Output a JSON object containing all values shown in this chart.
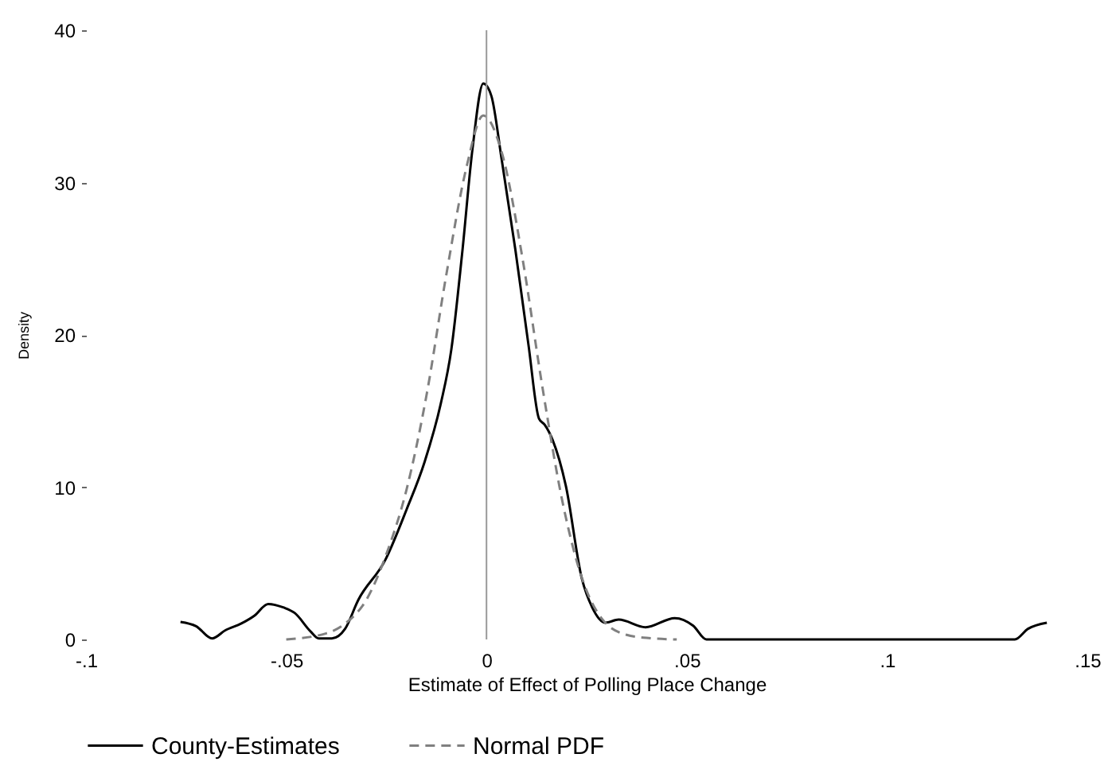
{
  "chart_data": {
    "type": "line",
    "xlabel": "Estimate of Effect of Polling Place Change",
    "ylabel": "Density",
    "xlim": [
      -0.1,
      0.15
    ],
    "xticks": [
      {
        "value": -0.1,
        "label": "-.1"
      },
      {
        "value": -0.05,
        "label": "-.05"
      },
      0,
      {
        "value": 0.05,
        "label": ".05"
      },
      {
        "value": 0.1,
        "label": ".1"
      },
      {
        "value": 0.15,
        "label": ".15"
      }
    ],
    "ylim": [
      0,
      40
    ],
    "yticks": [
      0,
      10,
      20,
      30,
      40
    ],
    "grid": false,
    "legend": "bottom",
    "marker": "none",
    "ref_lines": [
      {
        "axis": "x",
        "value": 0,
        "color": "#999999"
      }
    ],
    "series": [
      {
        "name": "County-Estimates",
        "color": "#000000",
        "line_style": "solid",
        "x": [
          -0.0764,
          -0.0725,
          -0.0685,
          -0.0652,
          -0.0612,
          -0.0579,
          -0.0545,
          -0.0506,
          -0.0479,
          -0.0439,
          -0.0419,
          -0.0386,
          -0.0353,
          -0.032,
          -0.0253,
          -0.02,
          -0.0154,
          -0.0114,
          -0.0088,
          -0.0061,
          -0.0035,
          -0.0008,
          0.0012,
          0.0038,
          0.0072,
          0.0105,
          0.0131,
          0.0145,
          0.0165,
          0.0198,
          0.0238,
          0.0264,
          0.0297,
          0.033,
          0.0397,
          0.047,
          0.0516,
          0.0549,
          0.1319,
          0.1352,
          0.1399
        ],
        "values": [
          1.15,
          0.87,
          0.07,
          0.6,
          1.05,
          1.57,
          2.33,
          2.09,
          1.74,
          0.52,
          0.07,
          0.07,
          0.7,
          2.6,
          5.2,
          8.5,
          11.7,
          15.5,
          19.0,
          25.3,
          32.2,
          36.5,
          35.7,
          31.5,
          25.6,
          19.3,
          14.5,
          14.1,
          13.1,
          10.1,
          4.0,
          2.1,
          1.1,
          1.3,
          0.8,
          1.4,
          0.9,
          0,
          0,
          0.7,
          1.1
        ]
      },
      {
        "name": "Normal PDF",
        "color": "#808080",
        "line_style": "dashed",
        "x": [
          -0.05,
          -0.04,
          -0.035,
          -0.03,
          -0.025,
          -0.02,
          -0.015,
          -0.01,
          -0.005,
          -0.0008,
          0.004,
          0.009,
          0.014,
          0.019,
          0.024,
          0.029,
          0.035,
          0.04,
          0.0475
        ],
        "values": [
          0.0,
          0.4,
          1.1,
          2.6,
          5.6,
          9.8,
          16.0,
          24.0,
          31.0,
          34.4,
          31.8,
          25.0,
          16.5,
          9.0,
          3.9,
          1.3,
          0.3,
          0.1,
          0.0
        ]
      }
    ]
  }
}
